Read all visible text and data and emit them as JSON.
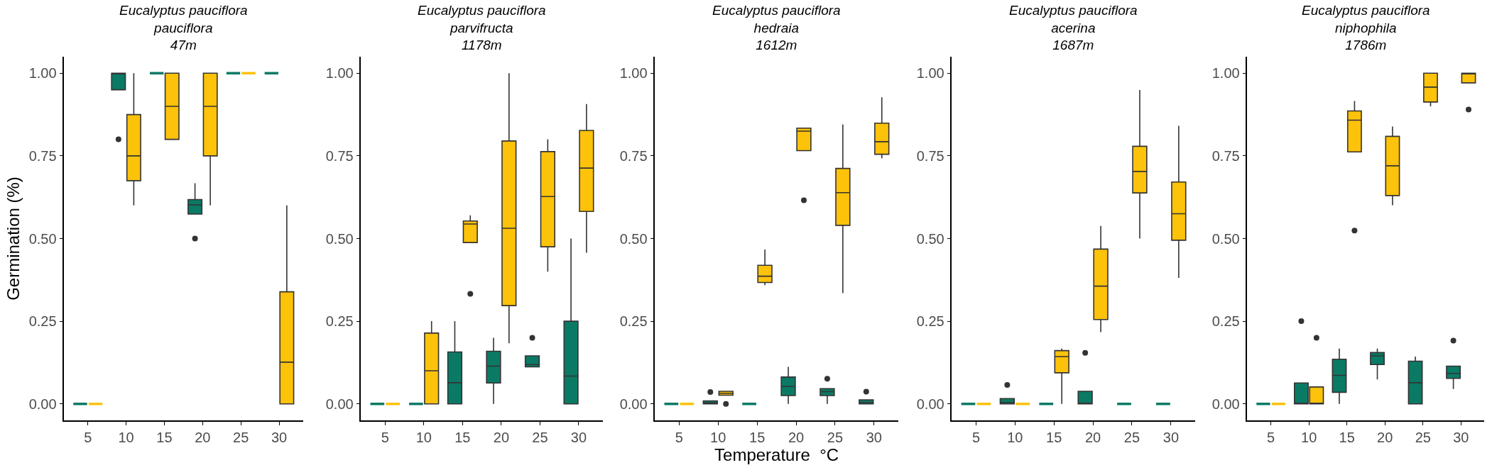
{
  "chart_data": [
    {
      "type": "box",
      "title": "Eucalyptus pauciflora\npauciflora\n47m",
      "ylabel": "Germination (%)",
      "categories": [
        "5",
        "10",
        "15",
        "20",
        "25",
        "30"
      ],
      "ylim": [
        -0.05,
        1.05
      ],
      "yticks": [
        {
          "value": 0,
          "label": "0.00"
        },
        {
          "value": 0.25,
          "label": "0.25"
        },
        {
          "value": 0.5,
          "label": "0.50"
        },
        {
          "value": 0.75,
          "label": "0.75"
        },
        {
          "value": 1,
          "label": "1.00"
        }
      ],
      "series": [
        {
          "color": "#0b7a65",
          "boxes": [
            {
              "low": 0,
              "q1": 0,
              "median": 0,
              "q3": 0,
              "high": 0
            },
            {
              "low": 0.95,
              "q1": 0.95,
              "median": 1.0,
              "q3": 1.0,
              "high": 1.0,
              "outliers": [
                0.8
              ]
            },
            {
              "low": 1.0,
              "q1": 1.0,
              "median": 1.0,
              "q3": 1.0,
              "high": 1.0
            },
            {
              "low": 0.574,
              "q1": 0.574,
              "median": 0.602,
              "q3": 0.618,
              "high": 0.667,
              "outliers": [
                0.5
              ]
            },
            {
              "low": 1.0,
              "q1": 1.0,
              "median": 1.0,
              "q3": 1.0,
              "high": 1.0
            },
            {
              "low": 1.0,
              "q1": 1.0,
              "median": 1.0,
              "q3": 1.0,
              "high": 1.0
            }
          ]
        },
        {
          "color": "#fdc20a",
          "boxes": [
            {
              "low": 0,
              "q1": 0,
              "median": 0,
              "q3": 0,
              "high": 0
            },
            {
              "low": 0.6,
              "q1": 0.675,
              "median": 0.75,
              "q3": 0.875,
              "high": 1.0
            },
            {
              "low": 0.8,
              "q1": 0.8,
              "median": 0.9,
              "q3": 1.0,
              "high": 1.0
            },
            {
              "low": 0.6,
              "q1": 0.75,
              "median": 0.9,
              "q3": 1.0,
              "high": 1.0
            },
            {
              "low": 1.0,
              "q1": 1.0,
              "median": 1.0,
              "q3": 1.0,
              "high": 1.0
            },
            {
              "low": 0,
              "q1": 0,
              "median": 0.126,
              "q3": 0.339,
              "high": 0.6
            }
          ]
        }
      ]
    },
    {
      "type": "box",
      "title": "Eucalyptus pauciflora\nparvifructa\n1178m",
      "categories": [
        "5",
        "10",
        "15",
        "20",
        "25",
        "30"
      ],
      "ylim": [
        -0.05,
        1.05
      ],
      "yticks": [
        {
          "value": 0,
          "label": "0.00"
        },
        {
          "value": 0.25,
          "label": "0.25"
        },
        {
          "value": 0.5,
          "label": "0.50"
        },
        {
          "value": 0.75,
          "label": "0.75"
        },
        {
          "value": 1,
          "label": "1.00"
        }
      ],
      "series": [
        {
          "color": "#0b7a65",
          "boxes": [
            {
              "low": 0,
              "q1": 0,
              "median": 0,
              "q3": 0,
              "high": 0
            },
            {
              "low": 0,
              "q1": 0,
              "median": 0,
              "q3": 0,
              "high": 0
            },
            {
              "low": 0,
              "q1": 0,
              "median": 0.064,
              "q3": 0.157,
              "high": 0.25
            },
            {
              "low": 0,
              "q1": 0.063,
              "median": 0.114,
              "q3": 0.159,
              "high": 0.2
            },
            {
              "low": 0.112,
              "q1": 0.112,
              "median": 0.119,
              "q3": 0.145,
              "high": 0.145,
              "outliers": [
                0.2
              ]
            },
            {
              "low": 0,
              "q1": 0,
              "median": 0.084,
              "q3": 0.25,
              "high": 0.5
            }
          ]
        },
        {
          "color": "#fdc20a",
          "boxes": [
            {
              "low": 0,
              "q1": 0,
              "median": 0,
              "q3": 0,
              "high": 0
            },
            {
              "low": 0,
              "q1": 0,
              "median": 0.1,
              "q3": 0.214,
              "high": 0.25
            },
            {
              "low": 0.488,
              "q1": 0.488,
              "median": 0.544,
              "q3": 0.553,
              "high": 0.57,
              "outliers": [
                0.333
              ]
            },
            {
              "low": 0.183,
              "q1": 0.297,
              "median": 0.531,
              "q3": 0.795,
              "high": 1.0
            },
            {
              "low": 0.4,
              "q1": 0.475,
              "median": 0.627,
              "q3": 0.763,
              "high": 0.8
            },
            {
              "low": 0.457,
              "q1": 0.582,
              "median": 0.713,
              "q3": 0.827,
              "high": 0.907
            }
          ]
        }
      ]
    },
    {
      "type": "box",
      "title": "Eucalyptus pauciflora\nhedraia\n1612m",
      "xlabel": "Temperature  °C",
      "categories": [
        "5",
        "10",
        "15",
        "20",
        "25",
        "30"
      ],
      "ylim": [
        -0.05,
        1.05
      ],
      "yticks": [
        {
          "value": 0,
          "label": "0.00"
        },
        {
          "value": 0.25,
          "label": "0.25"
        },
        {
          "value": 0.5,
          "label": "0.50"
        },
        {
          "value": 0.75,
          "label": "0.75"
        },
        {
          "value": 1,
          "label": "1.00"
        }
      ],
      "series": [
        {
          "color": "#0b7a65",
          "boxes": [
            {
              "low": 0,
              "q1": 0,
              "median": 0,
              "q3": 0,
              "high": 0
            },
            {
              "low": 0,
              "q1": 0,
              "median": 0.003,
              "q3": 0.009,
              "high": 0.009,
              "outliers": [
                0.036
              ]
            },
            {
              "low": 0,
              "q1": 0,
              "median": 0,
              "q3": 0,
              "high": 0
            },
            {
              "low": 0,
              "q1": 0.025,
              "median": 0.053,
              "q3": 0.081,
              "high": 0.112
            },
            {
              "low": 0,
              "q1": 0.025,
              "median": 0.037,
              "q3": 0.046,
              "high": 0.046,
              "outliers": [
                0.076
              ]
            },
            {
              "low": 0,
              "q1": 0,
              "median": 0.004,
              "q3": 0.012,
              "high": 0.012,
              "outliers": [
                0.037
              ]
            }
          ]
        },
        {
          "color": "#fdc20a",
          "boxes": [
            {
              "low": 0,
              "q1": 0,
              "median": 0,
              "q3": 0,
              "high": 0
            },
            {
              "low": 0.026,
              "q1": 0.026,
              "median": 0.032,
              "q3": 0.038,
              "high": 0.038,
              "outliers": [
                0
              ]
            },
            {
              "low": 0.359,
              "q1": 0.367,
              "median": 0.386,
              "q3": 0.419,
              "high": 0.467
            },
            {
              "low": 0.766,
              "q1": 0.766,
              "median": 0.825,
              "q3": 0.834,
              "high": 0.834,
              "outliers": [
                0.616
              ]
            },
            {
              "low": 0.335,
              "q1": 0.54,
              "median": 0.639,
              "q3": 0.712,
              "high": 0.845
            },
            {
              "low": 0.743,
              "q1": 0.755,
              "median": 0.793,
              "q3": 0.849,
              "high": 0.927
            }
          ]
        }
      ]
    },
    {
      "type": "box",
      "title": "Eucalyptus pauciflora\nacerina\n1687m",
      "categories": [
        "5",
        "10",
        "15",
        "20",
        "25",
        "30"
      ],
      "ylim": [
        -0.05,
        1.05
      ],
      "yticks": [
        {
          "value": 0,
          "label": "0.00"
        },
        {
          "value": 0.25,
          "label": "0.25"
        },
        {
          "value": 0.5,
          "label": "0.50"
        },
        {
          "value": 0.75,
          "label": "0.75"
        },
        {
          "value": 1,
          "label": "1.00"
        }
      ],
      "series": [
        {
          "color": "#0b7a65",
          "boxes": [
            {
              "low": 0,
              "q1": 0,
              "median": 0,
              "q3": 0,
              "high": 0
            },
            {
              "low": 0,
              "q1": 0,
              "median": 0.004,
              "q3": 0.016,
              "high": 0.016,
              "outliers": [
                0.057
              ]
            },
            {
              "low": 0,
              "q1": 0,
              "median": 0,
              "q3": 0,
              "high": 0
            },
            {
              "low": 0,
              "q1": 0,
              "median": 0,
              "q3": 0.038,
              "high": 0.038,
              "outliers": [
                0.154
              ]
            },
            {
              "low": 0,
              "q1": 0,
              "median": 0,
              "q3": 0,
              "high": 0
            },
            {
              "low": 0,
              "q1": 0,
              "median": 0,
              "q3": 0,
              "high": 0
            }
          ]
        },
        {
          "color": "#fdc20a",
          "boxes": [
            {
              "low": 0,
              "q1": 0,
              "median": 0,
              "q3": 0,
              "high": 0
            },
            {
              "low": 0,
              "q1": 0,
              "median": 0,
              "q3": 0,
              "high": 0
            },
            {
              "low": 0,
              "q1": 0.094,
              "median": 0.143,
              "q3": 0.161,
              "high": 0.167
            },
            {
              "low": 0.217,
              "q1": 0.255,
              "median": 0.356,
              "q3": 0.468,
              "high": 0.538
            },
            {
              "low": 0.5,
              "q1": 0.638,
              "median": 0.703,
              "q3": 0.779,
              "high": 0.949
            },
            {
              "low": 0.381,
              "q1": 0.495,
              "median": 0.575,
              "q3": 0.671,
              "high": 0.841
            }
          ]
        }
      ]
    },
    {
      "type": "box",
      "title": "Eucalyptus pauciflora\nniphophila\n1786m",
      "categories": [
        "5",
        "10",
        "15",
        "20",
        "25",
        "30"
      ],
      "ylim": [
        -0.05,
        1.05
      ],
      "yticks": [
        {
          "value": 0,
          "label": "0.00"
        },
        {
          "value": 0.25,
          "label": "0.25"
        },
        {
          "value": 0.5,
          "label": "0.50"
        },
        {
          "value": 0.75,
          "label": "0.75"
        },
        {
          "value": 1,
          "label": "1.00"
        }
      ],
      "series": [
        {
          "color": "#0b7a65",
          "boxes": [
            {
              "low": 0,
              "q1": 0,
              "median": 0,
              "q3": 0,
              "high": 0
            },
            {
              "low": 0,
              "q1": 0,
              "median": 0,
              "q3": 0.063,
              "high": 0.063,
              "outliers": [
                0.25
              ]
            },
            {
              "low": 0,
              "q1": 0.035,
              "median": 0.086,
              "q3": 0.135,
              "high": 0.167
            },
            {
              "low": 0.074,
              "q1": 0.119,
              "median": 0.145,
              "q3": 0.155,
              "high": 0.167
            },
            {
              "low": 0,
              "q1": 0,
              "median": 0.064,
              "q3": 0.129,
              "high": 0.143
            },
            {
              "low": 0.045,
              "q1": 0.077,
              "median": 0.092,
              "q3": 0.114,
              "high": 0.114,
              "outliers": [
                0.191
              ]
            }
          ]
        },
        {
          "color": "#fdc20a",
          "boxes": [
            {
              "low": 0,
              "q1": 0,
              "median": 0,
              "q3": 0,
              "high": 0
            },
            {
              "low": 0,
              "q1": 0,
              "median": 0,
              "q3": 0.051,
              "high": 0.051,
              "outliers": [
                0.2
              ]
            },
            {
              "low": 0.762,
              "q1": 0.762,
              "median": 0.858,
              "q3": 0.886,
              "high": 0.916,
              "outliers": [
                0.524
              ]
            },
            {
              "low": 0.601,
              "q1": 0.63,
              "median": 0.72,
              "q3": 0.809,
              "high": 0.839
            },
            {
              "low": 0.9,
              "q1": 0.913,
              "median": 0.958,
              "q3": 1.0,
              "high": 1.0
            },
            {
              "low": 0.971,
              "q1": 0.971,
              "median": 1.0,
              "q3": 1.0,
              "high": 1.0,
              "outliers": [
                0.89
              ]
            }
          ]
        }
      ]
    }
  ]
}
